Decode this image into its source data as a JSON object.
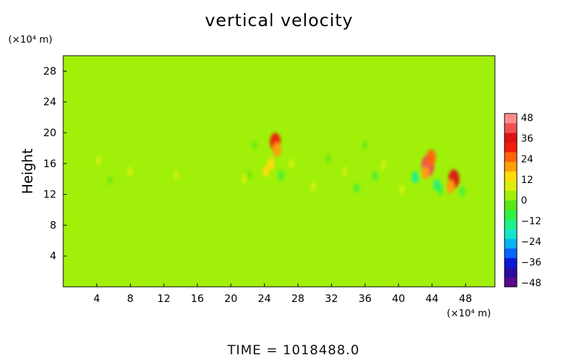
{
  "chart_data": {
    "type": "heatmap",
    "title": "vertical velocity",
    "ylabel": "Height",
    "x_unit_label": "(×10⁴ m)",
    "y_unit_label": "(×10⁴ m)",
    "xlim": [
      0,
      51.5
    ],
    "ylim": [
      0,
      30
    ],
    "x_ticks": [
      "4",
      "8",
      "12",
      "16",
      "20",
      "24",
      "28",
      "32",
      "36",
      "40",
      "44",
      "48"
    ],
    "y_ticks": [
      "4",
      "8",
      "12",
      "16",
      "20",
      "24",
      "28"
    ],
    "background_value": 4,
    "colorbar": {
      "range": [
        -48,
        48
      ],
      "ticks": [
        "48",
        "36",
        "24",
        "12",
        "0",
        "−12",
        "−24",
        "−36",
        "−48"
      ],
      "colors": [
        "#5a0a8c",
        "#2a0aa0",
        "#0a1ad8",
        "#0a64ff",
        "#0ab4f0",
        "#14e6c8",
        "#20f08c",
        "#32f040",
        "#5ae614",
        "#a0f00a",
        "#dcf00a",
        "#ffdc0a",
        "#ffa00a",
        "#ff640a",
        "#f01e0a",
        "#dc1414",
        "#f05050",
        "#ff8c8c"
      ]
    },
    "features": [
      {
        "x": 25.3,
        "y": 18.8,
        "value": 30
      },
      {
        "x": 25.5,
        "y": 17.8,
        "value": 20
      },
      {
        "x": 24.8,
        "y": 16.0,
        "value": 14
      },
      {
        "x": 24.2,
        "y": 15.0,
        "value": 12
      },
      {
        "x": 43.5,
        "y": 15.7,
        "value": 40
      },
      {
        "x": 43.9,
        "y": 16.8,
        "value": 24
      },
      {
        "x": 43.2,
        "y": 14.8,
        "value": 16
      },
      {
        "x": 46.6,
        "y": 14.0,
        "value": 32
      },
      {
        "x": 46.2,
        "y": 13.0,
        "value": 18
      },
      {
        "x": 26.0,
        "y": 14.5,
        "value": -10
      },
      {
        "x": 22.2,
        "y": 14.5,
        "value": -4
      },
      {
        "x": 42.0,
        "y": 14.2,
        "value": -14
      },
      {
        "x": 44.6,
        "y": 13.2,
        "value": -12
      },
      {
        "x": 45.0,
        "y": 12.6,
        "value": -10
      },
      {
        "x": 47.6,
        "y": 12.4,
        "value": -8
      },
      {
        "x": 37.2,
        "y": 14.4,
        "value": -6
      },
      {
        "x": 35.0,
        "y": 12.8,
        "value": -6
      },
      {
        "x": 31.6,
        "y": 16.6,
        "value": -4
      },
      {
        "x": 36.0,
        "y": 18.4,
        "value": -3
      },
      {
        "x": 22.8,
        "y": 18.4,
        "value": -4
      },
      {
        "x": 20.0,
        "y": 16.5,
        "value": 1
      },
      {
        "x": 5.6,
        "y": 13.8,
        "value": -2
      },
      {
        "x": 4.2,
        "y": 16.4,
        "value": 8
      },
      {
        "x": 8.0,
        "y": 15.0,
        "value": 8
      },
      {
        "x": 27.2,
        "y": 16.0,
        "value": 8
      },
      {
        "x": 29.8,
        "y": 13.0,
        "value": 8
      },
      {
        "x": 38.2,
        "y": 15.8,
        "value": 8
      },
      {
        "x": 21.6,
        "y": 14.0,
        "value": 8
      },
      {
        "x": 40.4,
        "y": 12.6,
        "value": 7
      },
      {
        "x": 33.6,
        "y": 15.0,
        "value": 7
      },
      {
        "x": 13.5,
        "y": 14.5,
        "value": 6
      },
      {
        "x": 2.4,
        "y": 3.0,
        "value": 1
      },
      {
        "x": 41.0,
        "y": 2.0,
        "value": 2
      },
      {
        "x": 30.6,
        "y": 1.0,
        "value": 2
      }
    ],
    "grid": false,
    "legend": "colorbar-right"
  },
  "footer": {
    "time_label": "TIME  =  1018488.0"
  }
}
